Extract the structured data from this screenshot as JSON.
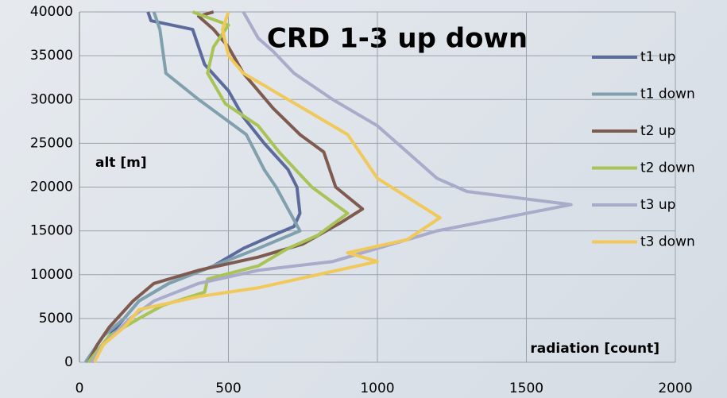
{
  "chart_data": {
    "type": "line",
    "title": "CRD 1-3 up down",
    "annotations": [
      "alt [m]",
      "radiation [count]"
    ],
    "xlim": [
      0,
      2000
    ],
    "xticks": [
      0,
      500,
      1000,
      1500,
      2000
    ],
    "ylim": [
      0,
      40000
    ],
    "yticks": [
      0,
      5000,
      10000,
      15000,
      20000,
      25000,
      30000,
      35000,
      40000
    ],
    "grid": true,
    "legend": "right",
    "series": [
      {
        "name": "t1 up",
        "color": "#5b6b9c",
        "x": [
          40,
          100,
          150,
          200,
          300,
          450,
          550,
          650,
          720,
          740,
          730,
          700,
          620,
          550,
          500,
          420,
          400,
          380,
          240,
          230
        ],
        "values": [
          0,
          3000,
          5000,
          7000,
          9000,
          11000,
          13000,
          14500,
          15500,
          17000,
          20000,
          22000,
          25000,
          28000,
          31000,
          34000,
          36000,
          38000,
          39000,
          40000
        ]
      },
      {
        "name": "t1 down",
        "color": "#80a0ae",
        "x": [
          20,
          80,
          150,
          200,
          300,
          450,
          600,
          740,
          660,
          620,
          560,
          400,
          290,
          270,
          250
        ],
        "values": [
          0,
          3000,
          5000,
          7000,
          9000,
          11000,
          13000,
          15000,
          20000,
          22000,
          26000,
          30000,
          33000,
          38000,
          40000
        ]
      },
      {
        "name": "t2 up",
        "color": "#7e5b4e",
        "x": [
          30,
          60,
          100,
          180,
          250,
          400,
          600,
          750,
          880,
          950,
          860,
          820,
          740,
          650,
          550,
          500,
          450,
          400,
          450
        ],
        "values": [
          0,
          2000,
          4000,
          7000,
          9000,
          10500,
          12000,
          13500,
          16000,
          17500,
          20000,
          24000,
          26000,
          29000,
          33000,
          36000,
          38000,
          39500,
          40000
        ]
      },
      {
        "name": "t2 down",
        "color": "#a9c357",
        "x": [
          30,
          100,
          200,
          280,
          420,
          430,
          600,
          700,
          800,
          900,
          780,
          670,
          600,
          490,
          430,
          450,
          500,
          380
        ],
        "values": [
          0,
          3000,
          5000,
          6500,
          8000,
          9500,
          11000,
          13000,
          14500,
          17000,
          20000,
          24000,
          27000,
          29500,
          33000,
          36000,
          38500,
          40000
        ]
      },
      {
        "name": "t3 up",
        "color": "#aaaaca",
        "x": [
          40,
          80,
          170,
          250,
          400,
          600,
          850,
          1000,
          1100,
          1200,
          1650,
          1300,
          1200,
          1100,
          1000,
          850,
          720,
          650,
          600,
          550
        ],
        "values": [
          0,
          2000,
          5000,
          7000,
          9000,
          10500,
          11500,
          13000,
          14000,
          15000,
          18000,
          19500,
          21000,
          24000,
          27000,
          30000,
          33000,
          35500,
          37000,
          40000
        ]
      },
      {
        "name": "t3 down",
        "color": "#f1c95b",
        "x": [
          50,
          80,
          150,
          200,
          400,
          600,
          800,
          1000,
          900,
          1100,
          1210,
          1000,
          900,
          750,
          550,
          500,
          480,
          500
        ],
        "values": [
          0,
          2000,
          4000,
          6000,
          7500,
          8500,
          10000,
          11500,
          12500,
          14000,
          16500,
          21000,
          26000,
          29000,
          33000,
          35000,
          38000,
          40000
        ]
      }
    ]
  }
}
